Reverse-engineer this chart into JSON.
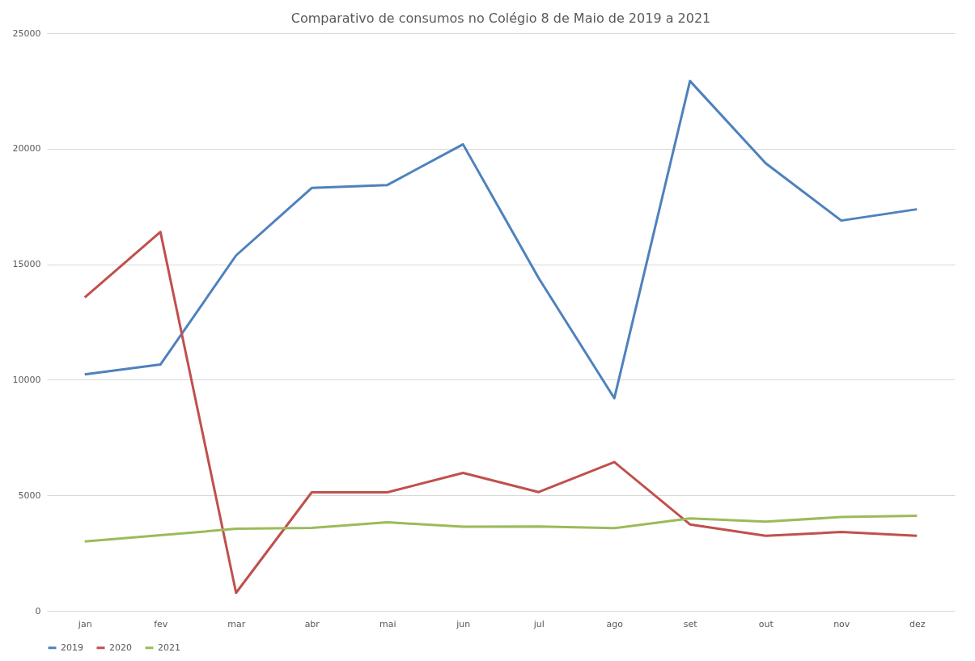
{
  "chart_data": {
    "type": "line",
    "title": "Comparativo de consumos no Colégio 8 de Maio de 2019 a 2021",
    "categories": [
      "jan",
      "fev",
      "mar",
      "abr",
      "mai",
      "jun",
      "jul",
      "ago",
      "set",
      "out",
      "nov",
      "dez"
    ],
    "series": [
      {
        "name": "2019",
        "color": "#4f81bd",
        "values": [
          10230,
          10660,
          15380,
          18300,
          18430,
          20190,
          14400,
          9200,
          22930,
          19370,
          16890,
          17380
        ]
      },
      {
        "name": "2020",
        "color": "#c0504d",
        "values": [
          13560,
          16400,
          780,
          5130,
          5130,
          5970,
          5140,
          6440,
          3740,
          3250,
          3410,
          3250
        ]
      },
      {
        "name": "2021",
        "color": "#9bbb59",
        "values": [
          3000,
          3270,
          3550,
          3590,
          3830,
          3640,
          3650,
          3580,
          4000,
          3860,
          4060,
          4110
        ]
      }
    ],
    "ylim": [
      0,
      25000
    ],
    "yticks": [
      0,
      5000,
      10000,
      15000,
      20000,
      25000
    ],
    "grid": "y",
    "legend": "bottom",
    "marker": "none",
    "line_style": "solid"
  }
}
